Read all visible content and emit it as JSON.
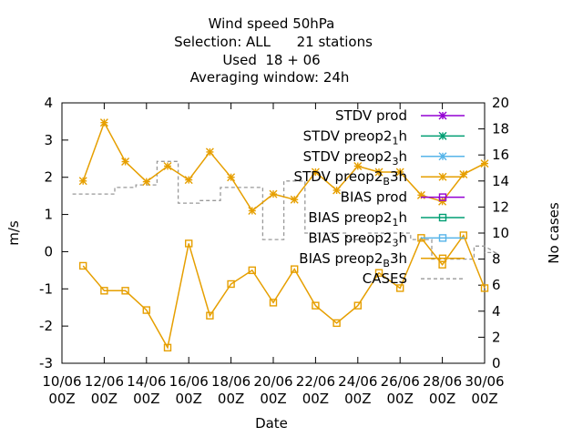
{
  "chart_data": {
    "type": "line",
    "title_lines": [
      "Wind speed 50hPa",
      "Selection: ALL      21 stations",
      "Used  18 + 06",
      "Averaging window: 24h"
    ],
    "xlabel": "Date",
    "ylabel": "m/s",
    "y2label": "No cases",
    "xlim": [
      0,
      20
    ],
    "ylim": [
      -3,
      4
    ],
    "y2lim": [
      0,
      20
    ],
    "x_ticks": [
      {
        "pos": 0,
        "l1": "10/06",
        "l2": "00Z"
      },
      {
        "pos": 2,
        "l1": "12/06",
        "l2": "00Z"
      },
      {
        "pos": 4,
        "l1": "14/06",
        "l2": "00Z"
      },
      {
        "pos": 6,
        "l1": "16/06",
        "l2": "00Z"
      },
      {
        "pos": 8,
        "l1": "18/06",
        "l2": "00Z"
      },
      {
        "pos": 10,
        "l1": "20/06",
        "l2": "00Z"
      },
      {
        "pos": 12,
        "l1": "22/06",
        "l2": "00Z"
      },
      {
        "pos": 14,
        "l1": "24/06",
        "l2": "00Z"
      },
      {
        "pos": 16,
        "l1": "26/06",
        "l2": "00Z"
      },
      {
        "pos": 18,
        "l1": "28/06",
        "l2": "00Z"
      },
      {
        "pos": 20,
        "l1": "30/06",
        "l2": "00Z"
      }
    ],
    "y_ticks": [
      "-3",
      "-2",
      "-1",
      "0",
      "1",
      "2",
      "3",
      "4"
    ],
    "y2_ticks": [
      "0",
      "2",
      "4",
      "6",
      "8",
      "10",
      "12",
      "14",
      "16",
      "18",
      "20"
    ],
    "legend": [
      {
        "main": "STDV prod",
        "sub": "",
        "tail": "",
        "color": "#9400d3",
        "marker": "x"
      },
      {
        "main": "STDV preop2",
        "sub": "1",
        "tail": "h",
        "color": "#009e73",
        "marker": "x"
      },
      {
        "main": "STDV preop2",
        "sub": "3",
        "tail": "h",
        "color": "#56b4e9",
        "marker": "x"
      },
      {
        "main": "STDV preop2",
        "sub": "B",
        "tail": "3h",
        "color": "#e69f00",
        "marker": "x"
      },
      {
        "main": "BIAS prod",
        "sub": "",
        "tail": "",
        "color": "#9400d3",
        "marker": "sq"
      },
      {
        "main": "BIAS preop2",
        "sub": "1",
        "tail": "h",
        "color": "#009e73",
        "marker": "sq"
      },
      {
        "main": "BIAS preop2",
        "sub": "3",
        "tail": "h",
        "color": "#56b4e9",
        "marker": "sq"
      },
      {
        "main": "BIAS preop2",
        "sub": "B",
        "tail": "3h",
        "color": "#e69f00",
        "marker": "sq"
      },
      {
        "main": "CASES",
        "sub": "",
        "tail": "",
        "color": "#999999",
        "marker": "dash"
      }
    ],
    "x": [
      1,
      2,
      3,
      4,
      5,
      6,
      7,
      8,
      9,
      10,
      11,
      12,
      13,
      14,
      15,
      16,
      17,
      18,
      19,
      20
    ],
    "stdv": [
      1.9,
      3.47,
      2.42,
      1.88,
      2.3,
      1.93,
      2.68,
      2.0,
      1.1,
      1.55,
      1.4,
      2.14,
      1.65,
      2.3,
      2.14,
      2.14,
      1.52,
      1.35,
      2.08,
      2.37
    ],
    "bias": [
      -0.38,
      -1.05,
      -1.05,
      -1.57,
      -2.58,
      0.22,
      -1.72,
      -0.87,
      -0.5,
      -1.37,
      -0.47,
      -1.45,
      -1.92,
      -1.45,
      -0.57,
      -0.98,
      0.37,
      -0.35,
      0.44,
      -0.98
    ],
    "cases": [
      13,
      13,
      13.5,
      13.7,
      15.5,
      12.3,
      12.5,
      13.5,
      13.5,
      9.5,
      14,
      10,
      10,
      9.5,
      10,
      10,
      9.5,
      8,
      8,
      9,
      8.5
    ]
  }
}
